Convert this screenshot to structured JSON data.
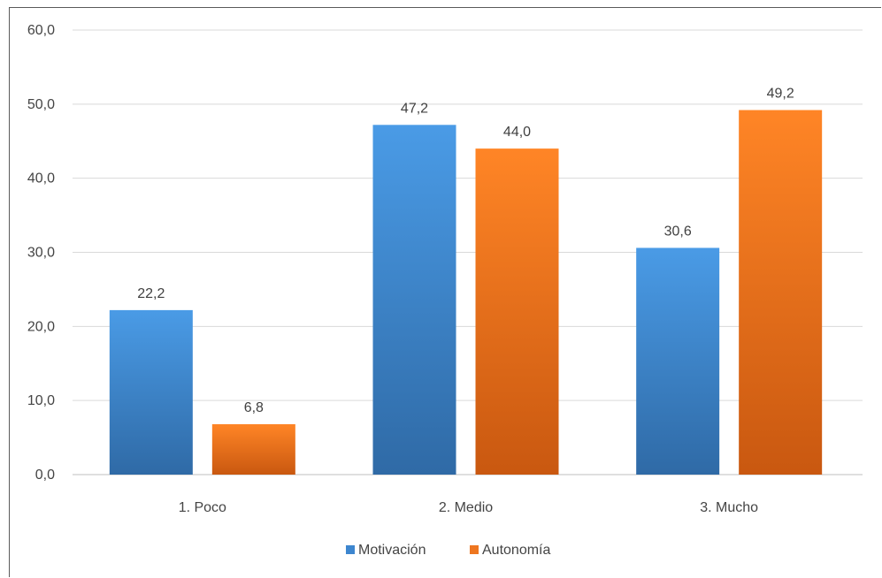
{
  "chart_data": {
    "type": "bar",
    "categories": [
      "1. Poco",
      "2. Medio",
      "3. Mucho"
    ],
    "series": [
      {
        "name": "Motivación",
        "values": [
          22.2,
          47.2,
          30.6
        ],
        "color": "#3d86cf"
      },
      {
        "name": "Autonomía",
        "values": [
          6.8,
          44.0,
          49.2
        ],
        "color": "#ee7620"
      }
    ],
    "data_labels": [
      [
        "22,2",
        "47,2",
        "30,6"
      ],
      [
        "6,8",
        "44,0",
        "49,2"
      ]
    ],
    "yticks": [
      0,
      10,
      20,
      30,
      40,
      50,
      60
    ],
    "ytick_labels": [
      "0,0",
      "10,0",
      "20,0",
      "30,0",
      "40,0",
      "50,0",
      "60,0"
    ],
    "ylim": [
      0,
      60
    ],
    "title": "",
    "xlabel": "",
    "ylabel": "",
    "grid": true,
    "legend": "bottom"
  }
}
